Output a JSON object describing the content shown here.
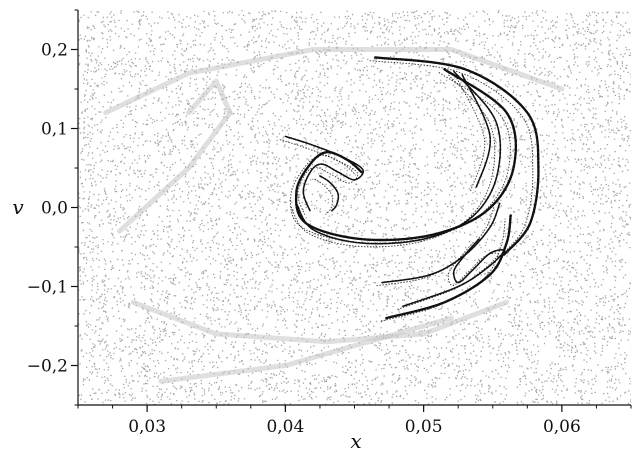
{
  "chart_data": {
    "type": "scatter",
    "xlabel": "x",
    "ylabel": "v",
    "xlim": [
      0.025,
      0.065
    ],
    "ylim": [
      -0.25,
      0.25
    ],
    "x_ticks": [
      {
        "value": 0.03,
        "label": "0,03"
      },
      {
        "value": 0.04,
        "label": "0,04"
      },
      {
        "value": 0.05,
        "label": "0,05"
      },
      {
        "value": 0.06,
        "label": "0,06"
      }
    ],
    "y_ticks": [
      {
        "value": 0.2,
        "label": "0,2"
      },
      {
        "value": 0.1,
        "label": "0,1"
      },
      {
        "value": 0.0,
        "label": "0,0"
      },
      {
        "value": -0.1,
        "label": "−0,1"
      },
      {
        "value": -0.2,
        "label": "−0,2"
      }
    ],
    "grid": false,
    "series": [
      {
        "color": "#a6a6a6",
        "style": "dense chaotic sea of points filling the plot area",
        "values": []
      },
      {
        "color": "#111111",
        "style": "thin filament curves (chaotic saddle / unstable manifold)",
        "curves": [
          {
            "points": [
              [
                0.0465,
                0.19
              ],
              [
                0.053,
                0.175
              ],
              [
                0.0575,
                0.12
              ],
              [
                0.0583,
                0.05
              ],
              [
                0.0577,
                -0.02
              ],
              [
                0.0558,
                -0.06
              ]
            ]
          },
          {
            "points": [
              [
                0.0515,
                0.175
              ],
              [
                0.056,
                0.12
              ],
              [
                0.0565,
                0.05
              ],
              [
                0.0545,
                -0.005
              ],
              [
                0.0505,
                -0.035
              ],
              [
                0.0455,
                -0.04
              ],
              [
                0.0415,
                -0.02
              ],
              [
                0.0408,
                0.02
              ],
              [
                0.0418,
                0.055
              ],
              [
                0.043,
                0.07
              ],
              [
                0.0445,
                0.06
              ],
              [
                0.0455,
                0.045
              ]
            ]
          },
          {
            "points": [
              [
                0.0522,
                0.172
              ],
              [
                0.0552,
                0.11
              ],
              [
                0.0553,
                0.04
              ],
              [
                0.0535,
                -0.012
              ],
              [
                0.05,
                -0.04
              ],
              [
                0.0455,
                -0.045
              ],
              [
                0.042,
                -0.028
              ],
              [
                0.0408,
                0.005
              ]
            ]
          },
          {
            "points": [
              [
                0.0528,
                0.168
              ],
              [
                0.0548,
                0.09
              ],
              [
                0.0538,
                0.025
              ]
            ]
          },
          {
            "points": [
              [
                0.04,
                0.09
              ],
              [
                0.0418,
                0.08
              ],
              [
                0.044,
                0.065
              ],
              [
                0.0456,
                0.048
              ],
              [
                0.045,
                0.035
              ],
              [
                0.0438,
                0.045
              ],
              [
                0.0426,
                0.055
              ],
              [
                0.0418,
                0.045
              ],
              [
                0.0413,
                0.02
              ],
              [
                0.0418,
                -0.005
              ]
            ]
          },
          {
            "points": [
              [
                0.0425,
                0.04
              ],
              [
                0.0432,
                0.032
              ],
              [
                0.0438,
                0.018
              ],
              [
                0.0437,
                0.003
              ],
              [
                0.0433,
                -0.005
              ]
            ]
          },
          {
            "points": [
              [
                0.0473,
                -0.14
              ],
              [
                0.0515,
                -0.12
              ],
              [
                0.0548,
                -0.085
              ],
              [
                0.056,
                -0.045
              ],
              [
                0.0563,
                -0.01
              ]
            ]
          },
          {
            "points": [
              [
                0.0485,
                -0.125
              ],
              [
                0.0525,
                -0.1
              ],
              [
                0.0547,
                -0.075
              ],
              [
                0.0558,
                -0.055
              ],
              [
                0.0548,
                -0.058
              ],
              [
                0.0535,
                -0.08
              ],
              [
                0.0525,
                -0.095
              ],
              [
                0.0522,
                -0.08
              ],
              [
                0.053,
                -0.06
              ],
              [
                0.054,
                -0.04
              ]
            ]
          },
          {
            "points": [
              [
                0.047,
                -0.095
              ],
              [
                0.0505,
                -0.085
              ],
              [
                0.053,
                -0.06
              ],
              [
                0.0548,
                -0.025
              ],
              [
                0.0555,
                0.005
              ]
            ]
          }
        ]
      }
    ]
  }
}
